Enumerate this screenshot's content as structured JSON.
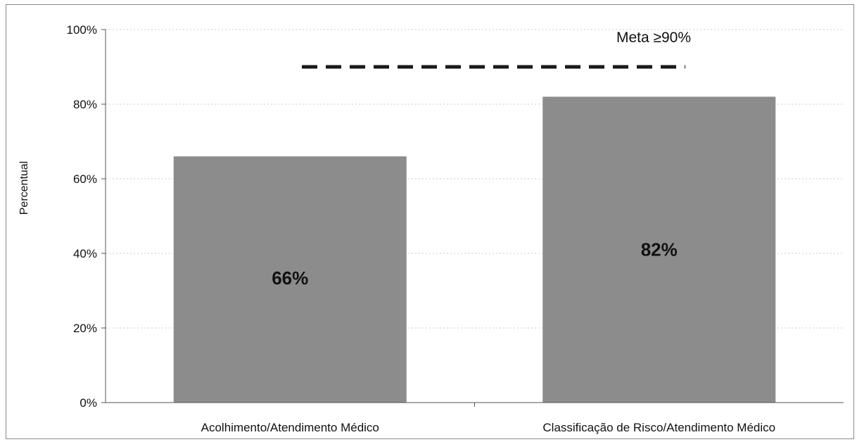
{
  "chart_data": {
    "type": "bar",
    "categories": [
      "Acolhimento/Atendimento Médico",
      "Classificação de Risco/Atendimento Médico"
    ],
    "values": [
      66,
      82
    ],
    "data_labels": [
      "66%",
      "82%"
    ],
    "ylabel": "Percentual",
    "xlabel": "",
    "ylim": [
      0,
      100
    ],
    "yticks": [
      0,
      20,
      40,
      60,
      80,
      100
    ],
    "ytick_labels": [
      "0%",
      "20%",
      "40%",
      "60%",
      "80%",
      "100%"
    ],
    "target": {
      "label": "Meta ≥90%",
      "value": 90,
      "style": "dashed"
    },
    "grid": true,
    "bar_color": "#8c8c8c",
    "target_color": "#1a1a1a"
  }
}
